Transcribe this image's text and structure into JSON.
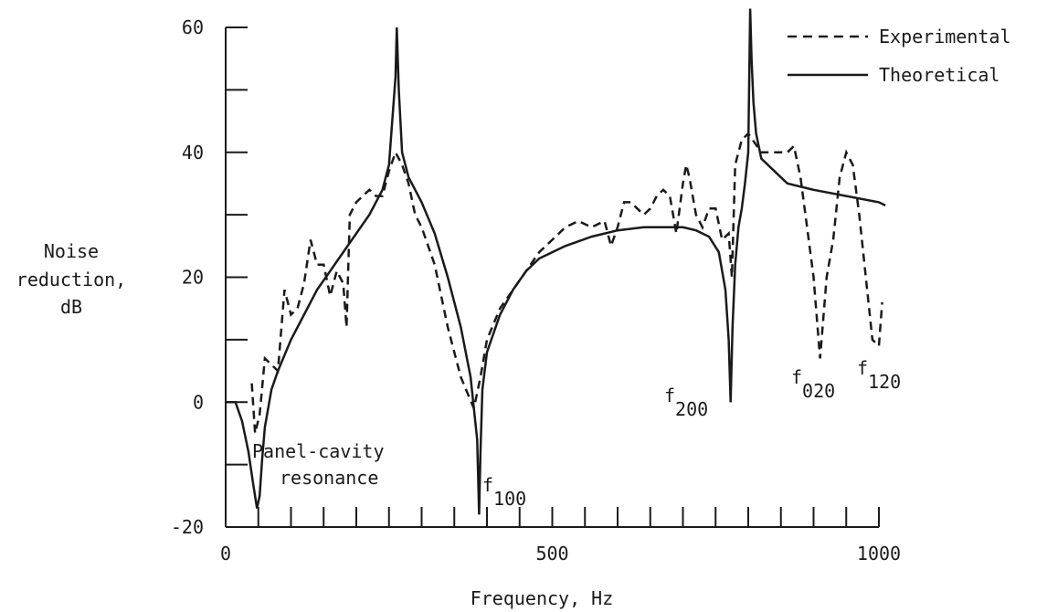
{
  "chart_data": {
    "type": "line",
    "title": "",
    "xlabel": "Frequency, Hz",
    "ylabel": [
      "Noise",
      "reduction,",
      "dB"
    ],
    "xlim": [
      0,
      1000
    ],
    "ylim": [
      -20,
      60
    ],
    "x_ticks": [
      0,
      500,
      1000
    ],
    "x_ticks_unlabeled": [
      50,
      100,
      150,
      200,
      250,
      300,
      350,
      400,
      450,
      550,
      600,
      650,
      700,
      750,
      800,
      850,
      900,
      950
    ],
    "y_ticks": [
      -20,
      0,
      20,
      40,
      60
    ],
    "y_ticks_unlabeled": [
      -10,
      10,
      30,
      50
    ],
    "grid": false,
    "legend_position": "top-right",
    "series": [
      {
        "name": "Experimental",
        "style": "dashed",
        "x": [
          40,
          45,
          52,
          60,
          70,
          80,
          90,
          100,
          110,
          120,
          130,
          140,
          150,
          160,
          170,
          180,
          185,
          190,
          200,
          210,
          220,
          230,
          240,
          250,
          260,
          270,
          280,
          290,
          300,
          320,
          340,
          360,
          380,
          390,
          400,
          420,
          440,
          460,
          480,
          500,
          520,
          540,
          560,
          580,
          590,
          600,
          610,
          620,
          640,
          650,
          660,
          670,
          680,
          690,
          700,
          705,
          710,
          720,
          730,
          740,
          750,
          760,
          770,
          775,
          780,
          790,
          800,
          820,
          840,
          860,
          870,
          880,
          890,
          900,
          910,
          920,
          930,
          940,
          950,
          960,
          970,
          980,
          990,
          1000,
          1005
        ],
        "y": [
          3,
          -5,
          -2,
          7,
          6,
          5,
          18,
          14,
          15,
          19,
          26,
          22,
          22,
          17,
          21,
          19,
          12,
          30,
          32,
          33,
          34,
          33,
          33,
          37,
          40,
          38,
          35,
          30,
          28,
          22,
          12,
          4,
          -1,
          4,
          10,
          15,
          18,
          21,
          24,
          26,
          28,
          29,
          28,
          29,
          25,
          28,
          32,
          32,
          30,
          31,
          33,
          34,
          33,
          27,
          35,
          38,
          36,
          30,
          28,
          31,
          31,
          26,
          27,
          20,
          38,
          42,
          43,
          40,
          40,
          40,
          41,
          36,
          28,
          20,
          7,
          20,
          26,
          36,
          40,
          38,
          30,
          20,
          10,
          9,
          16
        ]
      },
      {
        "name": "Theoretical",
        "style": "solid",
        "x": [
          0,
          15,
          25,
          35,
          42,
          48,
          52,
          56,
          60,
          70,
          80,
          100,
          120,
          140,
          160,
          180,
          200,
          220,
          240,
          250,
          255,
          260,
          262,
          265,
          270,
          280,
          300,
          320,
          340,
          360,
          375,
          385,
          388,
          390,
          393,
          400,
          420,
          440,
          460,
          480,
          500,
          520,
          560,
          600,
          640,
          680,
          700,
          720,
          740,
          755,
          765,
          770,
          773,
          776,
          780,
          785,
          790,
          795,
          800,
          803,
          805,
          808,
          812,
          820,
          840,
          860,
          900,
          950,
          1000,
          1010
        ],
        "y": [
          0,
          0,
          -3,
          -8,
          -13,
          -17,
          -15,
          -9,
          -4,
          2,
          5,
          10,
          14,
          18,
          21,
          24,
          27,
          30,
          34,
          38,
          45,
          52,
          60,
          50,
          40,
          36,
          32,
          27,
          20,
          12,
          4,
          -6,
          -18,
          -8,
          2,
          8,
          14,
          18,
          21,
          23,
          24,
          25,
          26.5,
          27.5,
          28,
          28,
          28,
          27.5,
          26.5,
          24,
          18,
          10,
          0,
          12,
          22,
          28,
          31,
          35,
          40,
          63,
          55,
          48,
          43,
          39,
          37,
          35,
          34,
          33,
          32,
          31.5
        ]
      }
    ],
    "annotations": [
      {
        "text": [
          "Panel-cavity",
          "resonance"
        ]
      },
      {
        "text": "f",
        "sub": "100"
      },
      {
        "text": "f",
        "sub": "200"
      },
      {
        "text": "f",
        "sub": "020"
      },
      {
        "text": "f",
        "sub": "120"
      }
    ]
  }
}
